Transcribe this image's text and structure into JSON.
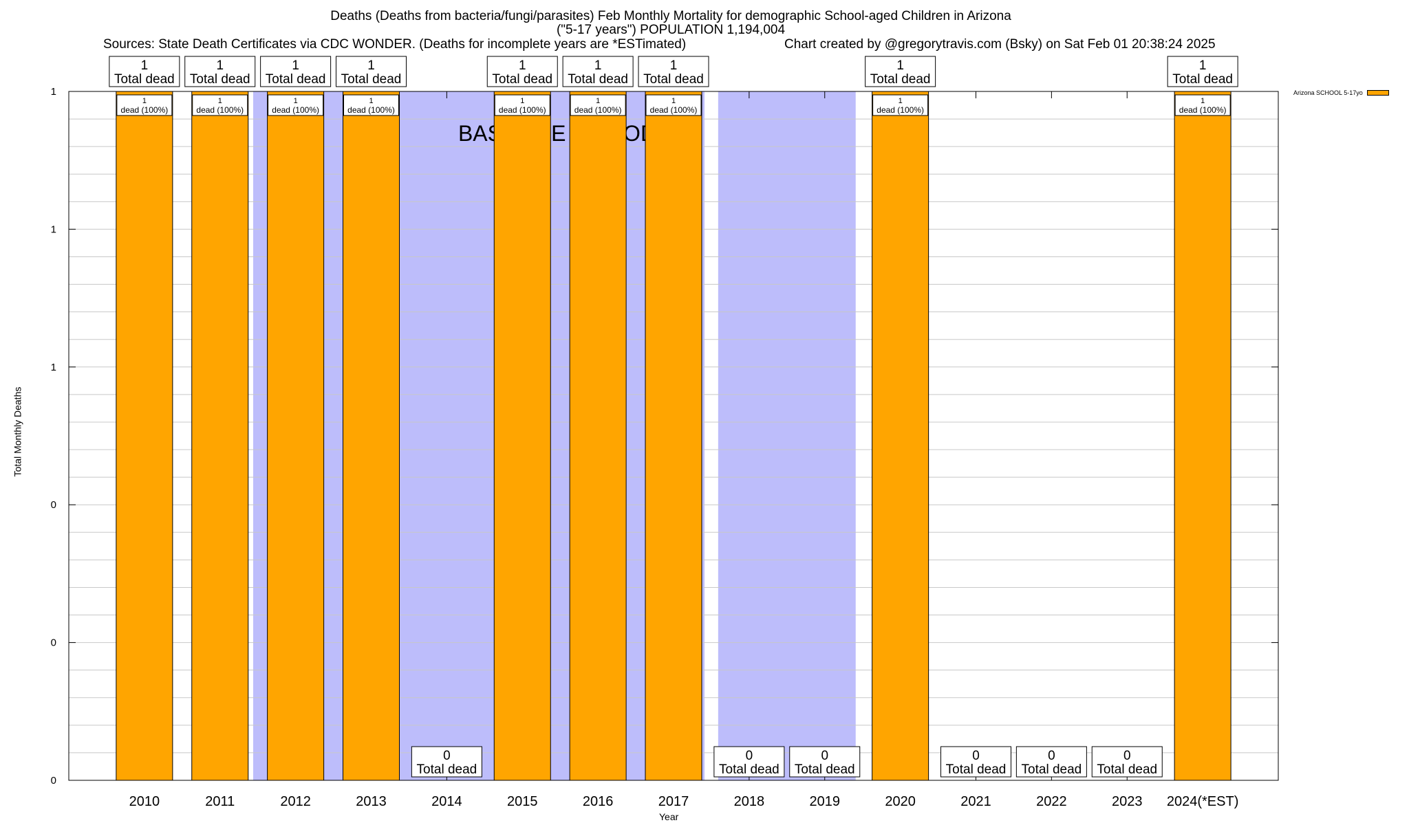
{
  "chart_data": {
    "type": "bar",
    "title_lines": [
      "Deaths (Deaths from bacteria/fungi/parasites) Feb Monthly Mortality for demographic School-aged Children in Arizona",
      "(\"5-17 years\") POPULATION 1,194,004"
    ],
    "sources": "Sources: State Death Certificates via CDC WONDER. (Deaths for incomplete years are *ESTimated)",
    "credit": "Chart created by @gregorytravis.com (Bsky) on Sat Feb 01 20:38:24 2025",
    "xlabel": "Year",
    "ylabel": "Total Monthly Deaths",
    "ylim": [
      0,
      1
    ],
    "ytick_values": [
      0,
      0.2,
      0.4,
      0.6,
      0.8,
      1.0
    ],
    "ytick_labels": [
      "0",
      "0",
      "0",
      "1",
      "1",
      "1"
    ],
    "baseline_label": "BASELINE PERIOD",
    "baseline_ranges": [
      [
        "2012",
        "2017"
      ],
      [
        "2018",
        "2019"
      ]
    ],
    "categories": [
      "2010",
      "2011",
      "2012",
      "2013",
      "2014",
      "2015",
      "2016",
      "2017",
      "2018",
      "2019",
      "2020",
      "2021",
      "2022",
      "2023",
      "2024(*EST)"
    ],
    "series": [
      {
        "name": "Arizona SCHOOL 5-17yo",
        "color": "#FFA500",
        "values": [
          1,
          1,
          1,
          1,
          0,
          1,
          1,
          1,
          0,
          0,
          1,
          0,
          0,
          0,
          1
        ]
      }
    ],
    "total_label": "Total dead",
    "inner_label": "dead (100%)"
  }
}
